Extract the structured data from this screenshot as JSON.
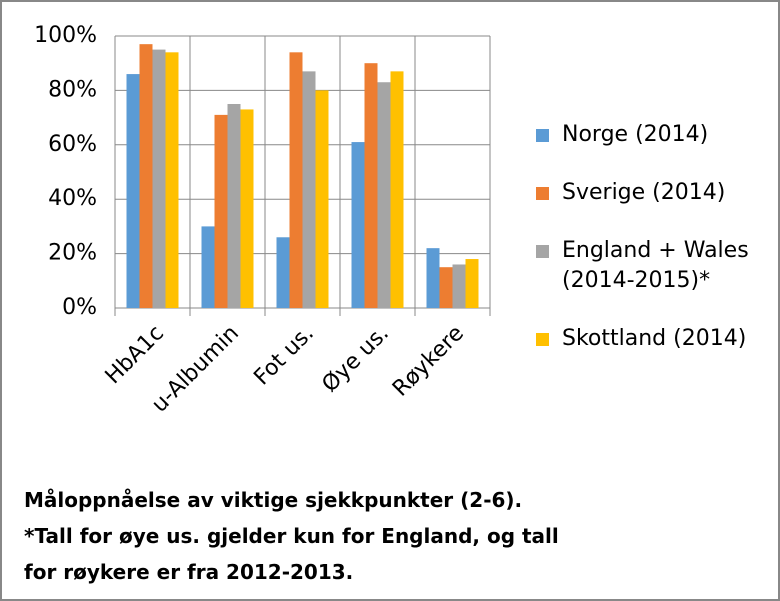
{
  "chart_data": {
    "type": "bar",
    "categories": [
      "HbA1c",
      "u-Albumin",
      "Fot us.",
      "Øye us.",
      "Røykere"
    ],
    "series": [
      {
        "name": "Norge (2014)",
        "color": "#5b9bd5",
        "values": [
          86,
          30,
          26,
          61,
          22
        ]
      },
      {
        "name": "Sverige (2014)",
        "color": "#ed7d31",
        "values": [
          97,
          71,
          94,
          90,
          15
        ]
      },
      {
        "name": "England + Wales (2014-2015)*",
        "color": "#a5a5a5",
        "values": [
          95,
          75,
          87,
          83,
          16
        ]
      },
      {
        "name": "Skottland (2014)",
        "color": "#ffc000",
        "values": [
          94,
          73,
          80,
          87,
          18
        ]
      }
    ],
    "ylim": [
      0,
      100
    ],
    "yticks": [
      {
        "value": 0,
        "label": "0%"
      },
      {
        "value": 20,
        "label": "20%"
      },
      {
        "value": 40,
        "label": "40%"
      },
      {
        "value": 60,
        "label": "60%"
      },
      {
        "value": 80,
        "label": "80%"
      },
      {
        "value": 100,
        "label": "100%"
      }
    ],
    "grid": true,
    "legend": "right",
    "annotations": [
      "Måloppnåelse av viktige sjekkpunkter (2-6).",
      "*Tall for øye us. gjelder kun for England, og tall",
      "for røykere er fra 2012-2013."
    ]
  }
}
